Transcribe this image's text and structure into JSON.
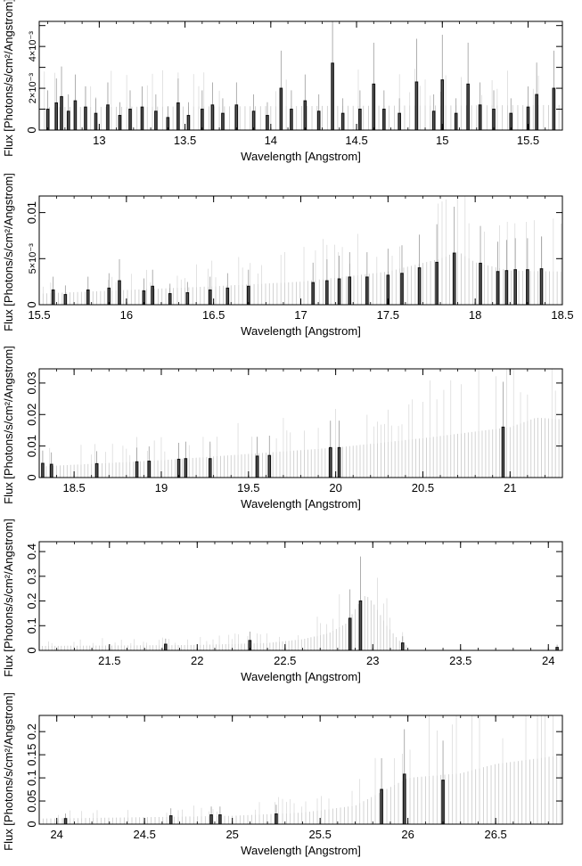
{
  "chart_data": [
    {
      "type": "bar",
      "xlabel": "Wavelength [Angstrom]",
      "ylabel": "Flux [Photons/s/cm²/Angstrom]",
      "xlim": [
        12.65,
        15.7
      ],
      "ylim": [
        0,
        0.0052
      ],
      "xticks": [
        {
          "v": 13,
          "label": "13"
        },
        {
          "v": 13.5,
          "label": "13.5"
        },
        {
          "v": 14,
          "label": "14"
        },
        {
          "v": 14.5,
          "label": "14.5"
        },
        {
          "v": 15,
          "label": "15"
        },
        {
          "v": 15.5,
          "label": "15.5"
        }
      ],
      "yticks": [
        {
          "v": 0,
          "label": "0"
        },
        {
          "v": 0.001,
          "label": ""
        },
        {
          "v": 0.002,
          "label": "2×10⁻³"
        },
        {
          "v": 0.003,
          "label": ""
        },
        {
          "v": 0.004,
          "label": "4×10⁻³"
        },
        {
          "v": 0.005,
          "label": ""
        }
      ],
      "background": {
        "start": 12.65,
        "end": 15.7,
        "step": 0.03,
        "base": [
          [
            12.65,
            0.0011
          ],
          [
            15.7,
            0.0012
          ]
        ],
        "seed": 1
      },
      "bars": [
        {
          "x": 12.7,
          "y": 0.001
        },
        {
          "x": 12.75,
          "y": 0.0013
        },
        {
          "x": 12.78,
          "y": 0.0016
        },
        {
          "x": 12.82,
          "y": 0.0009
        },
        {
          "x": 12.86,
          "y": 0.0014
        },
        {
          "x": 12.92,
          "y": 0.0011
        },
        {
          "x": 12.98,
          "y": 0.0008
        },
        {
          "x": 13.05,
          "y": 0.0012
        },
        {
          "x": 13.12,
          "y": 0.0007
        },
        {
          "x": 13.18,
          "y": 0.001
        },
        {
          "x": 13.25,
          "y": 0.0011
        },
        {
          "x": 13.33,
          "y": 0.0009
        },
        {
          "x": 13.4,
          "y": 0.0006
        },
        {
          "x": 13.46,
          "y": 0.0013
        },
        {
          "x": 13.52,
          "y": 0.0007
        },
        {
          "x": 13.6,
          "y": 0.001
        },
        {
          "x": 13.66,
          "y": 0.0012
        },
        {
          "x": 13.72,
          "y": 0.0008
        },
        {
          "x": 13.8,
          "y": 0.0012
        },
        {
          "x": 13.9,
          "y": 0.0009
        },
        {
          "x": 13.98,
          "y": 0.0007
        },
        {
          "x": 14.06,
          "y": 0.002
        },
        {
          "x": 14.12,
          "y": 0.001
        },
        {
          "x": 14.2,
          "y": 0.0014
        },
        {
          "x": 14.28,
          "y": 0.0009
        },
        {
          "x": 14.36,
          "y": 0.0032
        },
        {
          "x": 14.42,
          "y": 0.0008
        },
        {
          "x": 14.52,
          "y": 0.001
        },
        {
          "x": 14.6,
          "y": 0.0022
        },
        {
          "x": 14.66,
          "y": 0.001
        },
        {
          "x": 14.75,
          "y": 0.0008
        },
        {
          "x": 14.85,
          "y": 0.0023
        },
        {
          "x": 14.95,
          "y": 0.0009
        },
        {
          "x": 15.0,
          "y": 0.0024
        },
        {
          "x": 15.08,
          "y": 0.0008
        },
        {
          "x": 15.15,
          "y": 0.0022
        },
        {
          "x": 15.22,
          "y": 0.0012
        },
        {
          "x": 15.3,
          "y": 0.001
        },
        {
          "x": 15.4,
          "y": 0.0008
        },
        {
          "x": 15.5,
          "y": 0.0011
        },
        {
          "x": 15.55,
          "y": 0.0017
        },
        {
          "x": 15.65,
          "y": 0.002
        }
      ]
    },
    {
      "type": "bar",
      "xlabel": "Wavelength [Angstrom]",
      "ylabel": "Flux [Photons/s/cm²/Angstrom]",
      "xlim": [
        15.5,
        18.5
      ],
      "ylim": [
        0,
        0.0118
      ],
      "xticks": [
        {
          "v": 15.5,
          "label": "15.5"
        },
        {
          "v": 16,
          "label": "16"
        },
        {
          "v": 16.5,
          "label": "16.5"
        },
        {
          "v": 17,
          "label": "17"
        },
        {
          "v": 17.5,
          "label": "17.5"
        },
        {
          "v": 18,
          "label": "18"
        },
        {
          "v": 18.5,
          "label": "18.5"
        }
      ],
      "yticks": [
        {
          "v": 0,
          "label": "0"
        },
        {
          "v": 0.005,
          "label": "5×10⁻³"
        },
        {
          "v": 0.01,
          "label": "0.01"
        }
      ],
      "background": {
        "start": 15.5,
        "end": 18.5,
        "step": 0.022,
        "base": [
          [
            15.5,
            0.0012
          ],
          [
            16.0,
            0.0016
          ],
          [
            16.5,
            0.002
          ],
          [
            17.0,
            0.0025
          ],
          [
            17.5,
            0.0036
          ],
          [
            17.8,
            0.005
          ],
          [
            17.9,
            0.0058
          ],
          [
            18.0,
            0.0046
          ],
          [
            18.2,
            0.0037
          ],
          [
            18.5,
            0.0036
          ]
        ],
        "seed": 2
      },
      "bars": [
        {
          "x": 15.58,
          "y": 0.0016
        },
        {
          "x": 15.65,
          "y": 0.0011
        },
        {
          "x": 15.78,
          "y": 0.0016
        },
        {
          "x": 15.9,
          "y": 0.0018
        },
        {
          "x": 15.96,
          "y": 0.0026
        },
        {
          "x": 16.1,
          "y": 0.0015
        },
        {
          "x": 16.15,
          "y": 0.002
        },
        {
          "x": 16.25,
          "y": 0.0012
        },
        {
          "x": 16.35,
          "y": 0.0013
        },
        {
          "x": 16.48,
          "y": 0.0016
        },
        {
          "x": 16.58,
          "y": 0.0018
        },
        {
          "x": 16.7,
          "y": 0.002
        },
        {
          "x": 17.07,
          "y": 0.0024
        },
        {
          "x": 17.15,
          "y": 0.0026
        },
        {
          "x": 17.22,
          "y": 0.0028
        },
        {
          "x": 17.28,
          "y": 0.003
        },
        {
          "x": 17.38,
          "y": 0.003
        },
        {
          "x": 17.5,
          "y": 0.0032
        },
        {
          "x": 17.58,
          "y": 0.0034
        },
        {
          "x": 17.68,
          "y": 0.004
        },
        {
          "x": 17.78,
          "y": 0.0046
        },
        {
          "x": 17.88,
          "y": 0.0056
        },
        {
          "x": 18.03,
          "y": 0.0045
        },
        {
          "x": 18.13,
          "y": 0.0036
        },
        {
          "x": 18.18,
          "y": 0.0037
        },
        {
          "x": 18.23,
          "y": 0.0038
        },
        {
          "x": 18.3,
          "y": 0.0038
        },
        {
          "x": 18.38,
          "y": 0.0039
        }
      ]
    },
    {
      "type": "bar",
      "xlabel": "Wavelength [Angstrom]",
      "ylabel": "Flux [Photons/s/cm²/Angstrom]",
      "xlim": [
        18.3,
        21.3
      ],
      "ylim": [
        0,
        0.0345
      ],
      "xticks": [
        {
          "v": 18.5,
          "label": "18.5"
        },
        {
          "v": 19,
          "label": "19"
        },
        {
          "v": 19.5,
          "label": "19.5"
        },
        {
          "v": 20,
          "label": "20"
        },
        {
          "v": 20.5,
          "label": "20.5"
        },
        {
          "v": 21,
          "label": "21"
        }
      ],
      "yticks": [
        {
          "v": 0,
          "label": "0"
        },
        {
          "v": 0.01,
          "label": "0.01"
        },
        {
          "v": 0.02,
          "label": "0.02"
        },
        {
          "v": 0.03,
          "label": "0.03"
        }
      ],
      "background": {
        "start": 18.3,
        "end": 21.3,
        "step": 0.02,
        "base": [
          [
            18.3,
            0.0035
          ],
          [
            19.0,
            0.0055
          ],
          [
            19.5,
            0.0075
          ],
          [
            20.0,
            0.0095
          ],
          [
            20.5,
            0.0125
          ],
          [
            21.0,
            0.016
          ],
          [
            21.15,
            0.019
          ],
          [
            21.3,
            0.0185
          ]
        ],
        "seed": 3
      },
      "bars": [
        {
          "x": 18.32,
          "y": 0.0045
        },
        {
          "x": 18.37,
          "y": 0.0042
        },
        {
          "x": 18.63,
          "y": 0.0044
        },
        {
          "x": 18.86,
          "y": 0.005
        },
        {
          "x": 18.93,
          "y": 0.0052
        },
        {
          "x": 19.1,
          "y": 0.0058
        },
        {
          "x": 19.14,
          "y": 0.006
        },
        {
          "x": 19.28,
          "y": 0.006
        },
        {
          "x": 19.55,
          "y": 0.0068
        },
        {
          "x": 19.62,
          "y": 0.007
        },
        {
          "x": 19.97,
          "y": 0.0095
        },
        {
          "x": 20.02,
          "y": 0.0095
        },
        {
          "x": 20.96,
          "y": 0.016
        }
      ]
    },
    {
      "type": "bar",
      "xlabel": "Wavelength [Angstrom]",
      "ylabel": "Flux [Photons/s/cm²/Angstrom]",
      "xlim": [
        21.1,
        24.08
      ],
      "ylim": [
        0,
        0.44
      ],
      "xticks": [
        {
          "v": 21.5,
          "label": "21.5"
        },
        {
          "v": 22,
          "label": "22"
        },
        {
          "v": 22.5,
          "label": "22.5"
        },
        {
          "v": 23,
          "label": "23"
        },
        {
          "v": 23.5,
          "label": "23.5"
        },
        {
          "v": 24,
          "label": "24"
        }
      ],
      "yticks": [
        {
          "v": 0,
          "label": "0"
        },
        {
          "v": 0.1,
          "label": "0.1"
        },
        {
          "v": 0.2,
          "label": "0.2"
        },
        {
          "v": 0.3,
          "label": "0.3"
        },
        {
          "v": 0.4,
          "label": "0.4"
        }
      ],
      "background": {
        "start": 21.1,
        "end": 23.2,
        "step": 0.018,
        "base": [
          [
            21.1,
            0.018
          ],
          [
            22.0,
            0.022
          ],
          [
            22.4,
            0.03
          ],
          [
            22.6,
            0.045
          ],
          [
            22.75,
            0.07
          ],
          [
            22.85,
            0.11
          ],
          [
            22.92,
            0.19
          ],
          [
            22.96,
            0.225
          ],
          [
            23.0,
            0.195
          ],
          [
            23.08,
            0.1
          ],
          [
            23.15,
            0.04
          ],
          [
            23.2,
            0.015
          ]
        ],
        "seed": 4
      },
      "bars": [
        {
          "x": 21.82,
          "y": 0.025
        },
        {
          "x": 22.3,
          "y": 0.04
        },
        {
          "x": 22.87,
          "y": 0.13
        },
        {
          "x": 22.93,
          "y": 0.2
        },
        {
          "x": 23.17,
          "y": 0.03
        },
        {
          "x": 24.05,
          "y": 0.012
        }
      ]
    },
    {
      "type": "bar",
      "xlabel": "Wavelength [Angstrom]",
      "ylabel": "Flux [Photons/s/cm²/Angstrom]",
      "xlim": [
        23.9,
        26.88
      ],
      "ylim": [
        0,
        0.235
      ],
      "xticks": [
        {
          "v": 24,
          "label": "24"
        },
        {
          "v": 24.5,
          "label": "24.5"
        },
        {
          "v": 25,
          "label": "25"
        },
        {
          "v": 25.5,
          "label": "25.5"
        },
        {
          "v": 26,
          "label": "26"
        },
        {
          "v": 26.5,
          "label": "26.5"
        }
      ],
      "yticks": [
        {
          "v": 0,
          "label": "0"
        },
        {
          "v": 0.05,
          "label": "0.05"
        },
        {
          "v": 0.1,
          "label": "0.1"
        },
        {
          "v": 0.15,
          "label": "0.15"
        },
        {
          "v": 0.2,
          "label": "0.2"
        }
      ],
      "background": {
        "start": 23.9,
        "end": 26.88,
        "step": 0.022,
        "base": [
          [
            23.9,
            0.012
          ],
          [
            24.5,
            0.015
          ],
          [
            25.0,
            0.018
          ],
          [
            25.4,
            0.025
          ],
          [
            25.7,
            0.04
          ],
          [
            25.85,
            0.07
          ],
          [
            26.0,
            0.1
          ],
          [
            26.3,
            0.11
          ],
          [
            26.5,
            0.13
          ],
          [
            26.7,
            0.14
          ],
          [
            26.88,
            0.15
          ]
        ],
        "seed": 5
      },
      "bars": [
        {
          "x": 24.05,
          "y": 0.012
        },
        {
          "x": 24.65,
          "y": 0.018
        },
        {
          "x": 24.88,
          "y": 0.02
        },
        {
          "x": 24.93,
          "y": 0.02
        },
        {
          "x": 25.25,
          "y": 0.022
        },
        {
          "x": 25.85,
          "y": 0.075
        },
        {
          "x": 25.98,
          "y": 0.108
        },
        {
          "x": 26.2,
          "y": 0.095
        }
      ]
    }
  ]
}
